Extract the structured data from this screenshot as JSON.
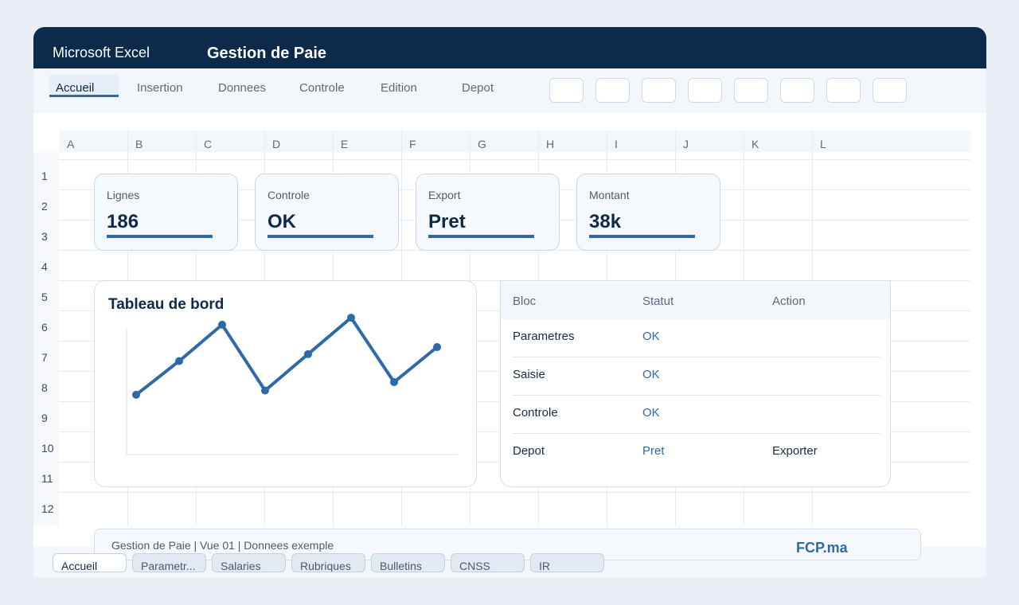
{
  "app": {
    "name": "Microsoft Excel",
    "document_title": "Gestion de Paie"
  },
  "ribbon": {
    "tabs": [
      "Accueil",
      "Insertion",
      "Donnees",
      "Controle",
      "Edition",
      "Depot"
    ],
    "active_tab": "Accueil",
    "toolbar_button_count": 8
  },
  "sheet": {
    "columns": [
      "A",
      "B",
      "C",
      "D",
      "E",
      "F",
      "G",
      "H",
      "I",
      "J",
      "K",
      "L"
    ],
    "rows": [
      "1",
      "2",
      "3",
      "4",
      "5",
      "6",
      "7",
      "8",
      "9",
      "10",
      "11",
      "12"
    ]
  },
  "kpis": [
    {
      "label": "Lignes",
      "value": "186"
    },
    {
      "label": "Controle",
      "value": "OK"
    },
    {
      "label": "Export",
      "value": "Pret"
    },
    {
      "label": "Montant",
      "value": "38k"
    }
  ],
  "chart": {
    "title": "Tableau de bord"
  },
  "chart_data": {
    "type": "line",
    "title": "Tableau de bord",
    "xlabel": "",
    "ylabel": "",
    "x": [
      1,
      2,
      3,
      4,
      5,
      6,
      7,
      8
    ],
    "values": [
      37,
      61,
      87,
      40,
      66,
      92,
      46,
      71
    ],
    "ylim": [
      0,
      100
    ],
    "grid": false,
    "color": "#2e6aa6"
  },
  "status_table": {
    "headers": [
      "Bloc",
      "Statut",
      "Action"
    ],
    "rows": [
      {
        "bloc": "Parametres",
        "statut": "OK",
        "action": ""
      },
      {
        "bloc": "Saisie",
        "statut": "OK",
        "action": ""
      },
      {
        "bloc": "Controle",
        "statut": "OK",
        "action": ""
      },
      {
        "bloc": "Depot",
        "statut": "Pret",
        "action": "Exporter"
      }
    ]
  },
  "footer": {
    "text": "Gestion de Paie | Vue 01 | Donnees exemple",
    "brand": "FCP.ma"
  },
  "sheet_tabs": [
    "Accueil",
    "Parametr...",
    "Salaries",
    "Rubriques",
    "Bulletins",
    "CNSS",
    "IR"
  ],
  "active_sheet_tab": "Accueil",
  "colors": {
    "titlebar": "#0c2a4a",
    "accent": "#2e6aa6",
    "background": "#e9eef5"
  }
}
